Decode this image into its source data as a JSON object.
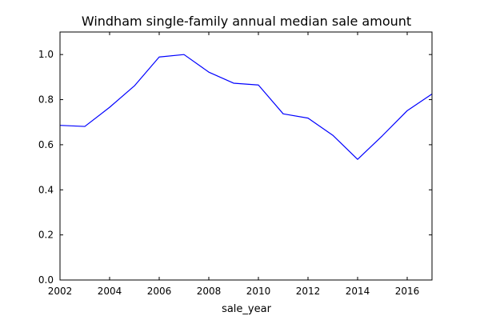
{
  "chart_data": {
    "type": "line",
    "title": "Windham single-family annual median sale amount",
    "xlabel": "sale_year",
    "ylabel": "",
    "xlim": [
      2002,
      2017
    ],
    "ylim": [
      0.0,
      1.1
    ],
    "grid": false,
    "legend": "none",
    "x_ticks": [
      2002,
      2004,
      2006,
      2008,
      2010,
      2012,
      2014,
      2016
    ],
    "x_tick_labels": [
      "2002",
      "2004",
      "2006",
      "2008",
      "2010",
      "2012",
      "2014",
      "2016"
    ],
    "y_ticks": [
      0.0,
      0.2,
      0.4,
      0.6,
      0.8,
      1.0
    ],
    "y_tick_labels": [
      "0.0",
      "0.2",
      "0.4",
      "0.6",
      "0.8",
      "1.0"
    ],
    "series": [
      {
        "color": "#0000ff",
        "x": [
          2002,
          2003,
          2004,
          2005,
          2006,
          2007,
          2008,
          2009,
          2010,
          2011,
          2012,
          2013,
          2014,
          2015,
          2016,
          2017
        ],
        "y": [
          0.686,
          0.681,
          0.766,
          0.861,
          0.989,
          1.0,
          0.922,
          0.873,
          0.865,
          0.737,
          0.718,
          0.642,
          0.535,
          0.64,
          0.751,
          0.825
        ]
      }
    ]
  }
}
